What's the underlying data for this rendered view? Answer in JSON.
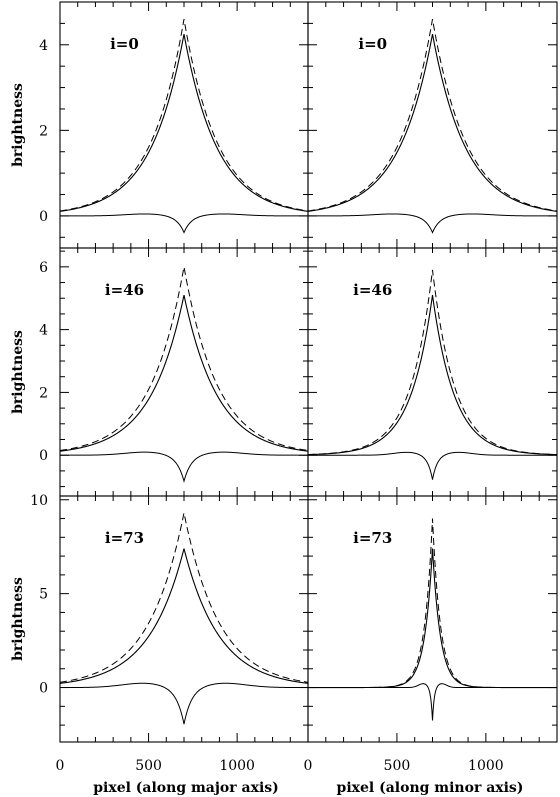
{
  "chart_data": {
    "type": "line",
    "layout": "3 rows x 2 columns, shared x axis per column, shared y axis per row",
    "x_axis": {
      "range": [
        0,
        1400
      ],
      "ticks": [
        0,
        500,
        1000
      ],
      "labels": [
        "pixel (along major axis)",
        "pixel (along minor axis)"
      ]
    },
    "y_label": "brightness",
    "line_styles": [
      "dashed",
      "solid",
      "solid"
    ],
    "rows": [
      {
        "label": "i=0",
        "ylim": [
          -0.75,
          5.0
        ],
        "yticks": [
          0,
          2,
          4
        ],
        "panels": [
          {
            "axis": "major",
            "peak_x": 700,
            "dashed_peak": 4.6,
            "solid_peak": 4.25,
            "residual_min": -0.4,
            "width": 190
          },
          {
            "axis": "minor",
            "peak_x": 700,
            "dashed_peak": 4.6,
            "solid_peak": 4.25,
            "residual_min": -0.4,
            "width": 190
          }
        ]
      },
      {
        "label": "i=46",
        "ylim": [
          -1.3,
          6.6
        ],
        "yticks": [
          0,
          2,
          4,
          6
        ],
        "panels": [
          {
            "axis": "major",
            "peak_x": 700,
            "dashed_peak": 6.0,
            "solid_peak": 5.1,
            "residual_min": -0.85,
            "width": 190
          },
          {
            "axis": "minor",
            "peak_x": 700,
            "dashed_peak": 5.9,
            "solid_peak": 5.1,
            "residual_min": -0.8,
            "width": 125
          }
        ]
      },
      {
        "label": "i=73",
        "ylim": [
          -2.9,
          10.2
        ],
        "yticks": [
          0,
          5,
          10
        ],
        "panels": [
          {
            "axis": "major",
            "peak_x": 700,
            "dashed_peak": 9.3,
            "solid_peak": 7.4,
            "residual_min": -2.0,
            "width": 200
          },
          {
            "axis": "minor",
            "peak_x": 700,
            "dashed_peak": 9.0,
            "solid_peak": 7.4,
            "residual_min": -1.8,
            "width": 45
          }
        ]
      }
    ]
  }
}
